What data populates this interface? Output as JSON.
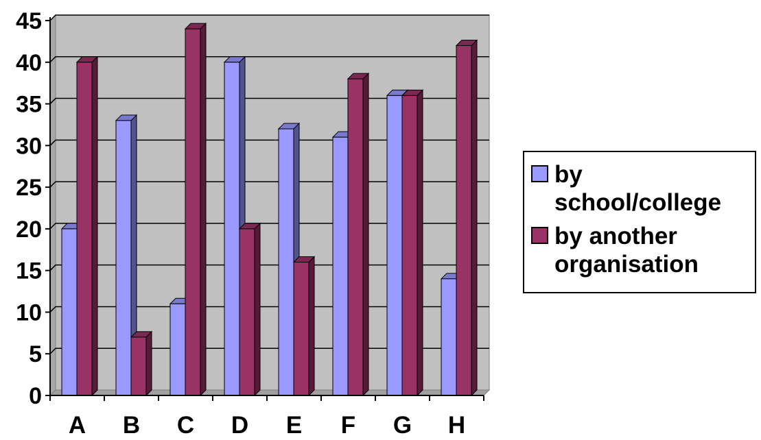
{
  "chart_data": {
    "type": "bar",
    "categories": [
      "A",
      "B",
      "C",
      "D",
      "E",
      "F",
      "G",
      "H"
    ],
    "series": [
      {
        "name": "by school/college",
        "color": "#9999ff",
        "values": [
          20,
          33,
          11,
          40,
          32,
          31,
          36,
          14
        ]
      },
      {
        "name": "by another organisation",
        "color": "#993366",
        "values": [
          40,
          7,
          44,
          20,
          16,
          38,
          36,
          42
        ]
      }
    ],
    "ylim": [
      0,
      45
    ],
    "yticks": [
      "0",
      "5",
      "10",
      "15",
      "20",
      "25",
      "30",
      "35",
      "40",
      "45"
    ],
    "title": "",
    "xlabel": "",
    "ylabel": "",
    "grid": true,
    "legend": "right",
    "plot_background": "#c0c0c0"
  }
}
